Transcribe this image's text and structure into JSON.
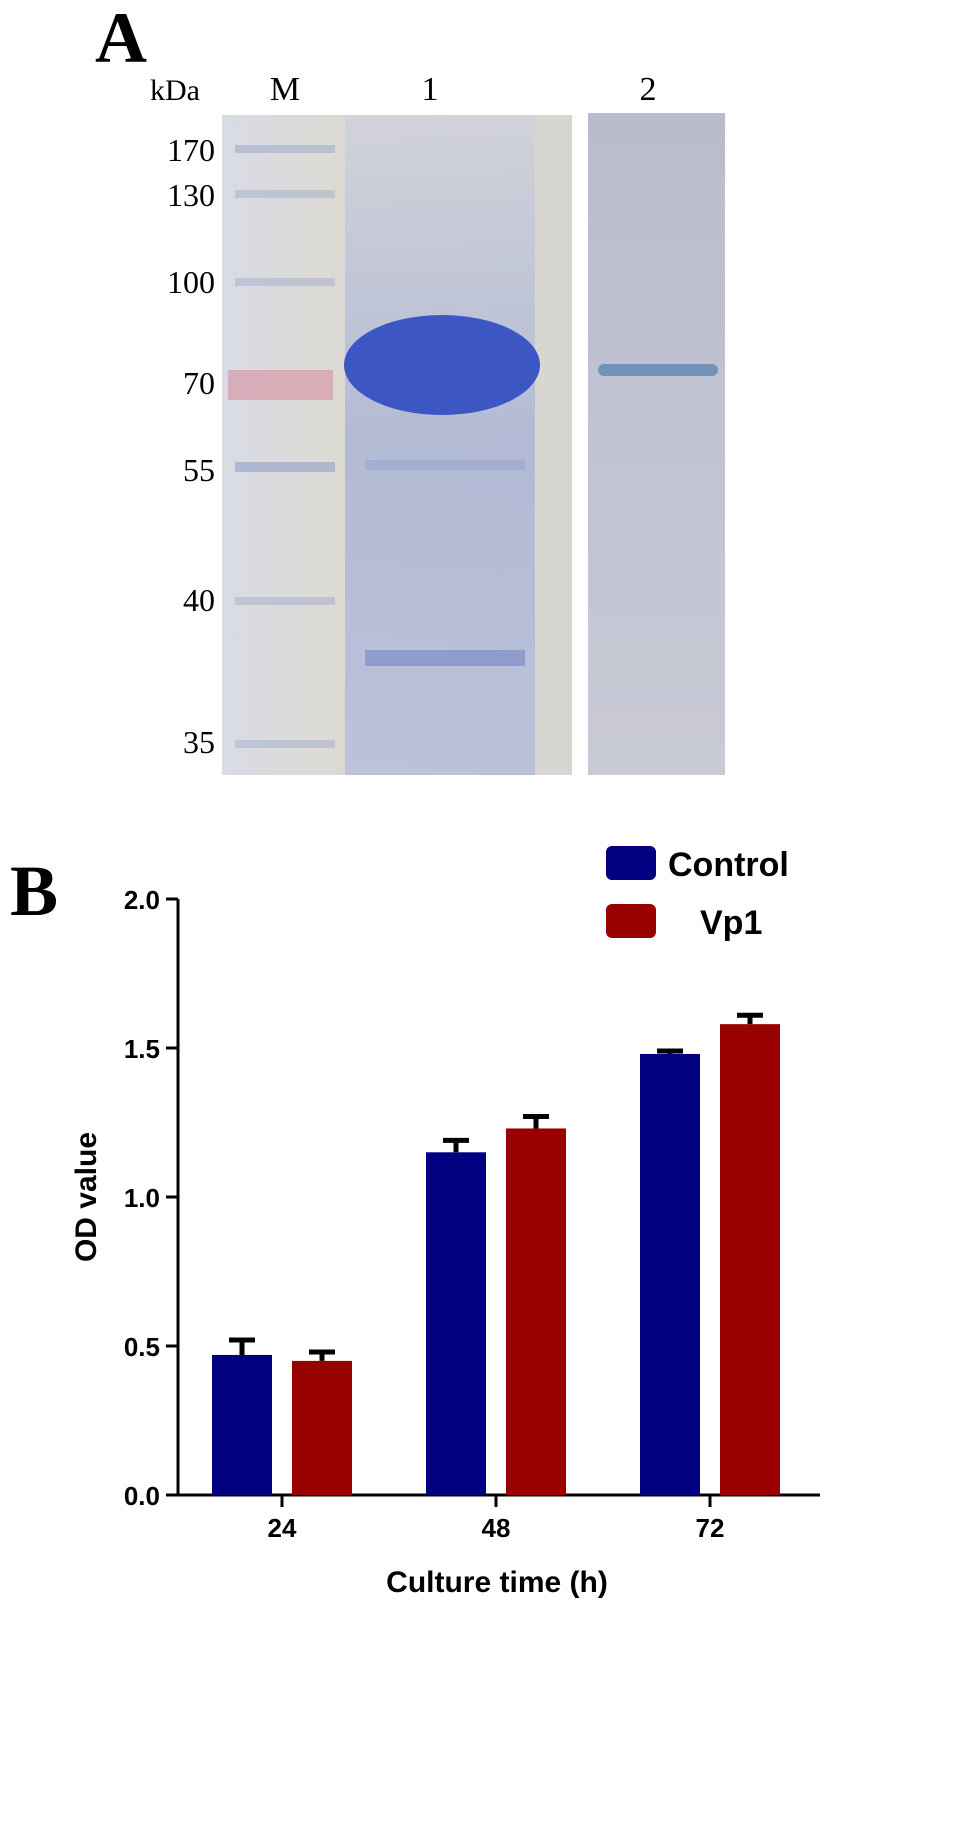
{
  "panel_a": {
    "label": "A",
    "unit": "kDa",
    "lanes": [
      "M",
      "1",
      "2"
    ],
    "markers": [
      170,
      130,
      100,
      70,
      55,
      40,
      35
    ]
  },
  "panel_b_label": "B",
  "chart_data": {
    "type": "bar",
    "categories": [
      "24",
      "48",
      "72"
    ],
    "x_label": "Culture time (h)",
    "y_label": "OD value",
    "series": [
      {
        "name": "Control",
        "color": "#000080",
        "values": [
          0.47,
          1.15,
          1.48
        ],
        "errors": [
          0.05,
          0.04,
          0.01
        ]
      },
      {
        "name": "Vp1",
        "color": "#990000",
        "values": [
          0.45,
          1.23,
          1.58
        ],
        "errors": [
          0.03,
          0.04,
          0.03
        ]
      }
    ],
    "ylim": [
      0,
      2
    ],
    "yticks": [
      {
        "value": 0,
        "label": "0.0"
      },
      {
        "value": 0.5,
        "label": "0.5"
      },
      {
        "value": 1,
        "label": "1.0"
      },
      {
        "value": 1.5,
        "label": "1.5"
      },
      {
        "value": 2,
        "label": "2.0"
      }
    ],
    "legend": "top-right"
  }
}
